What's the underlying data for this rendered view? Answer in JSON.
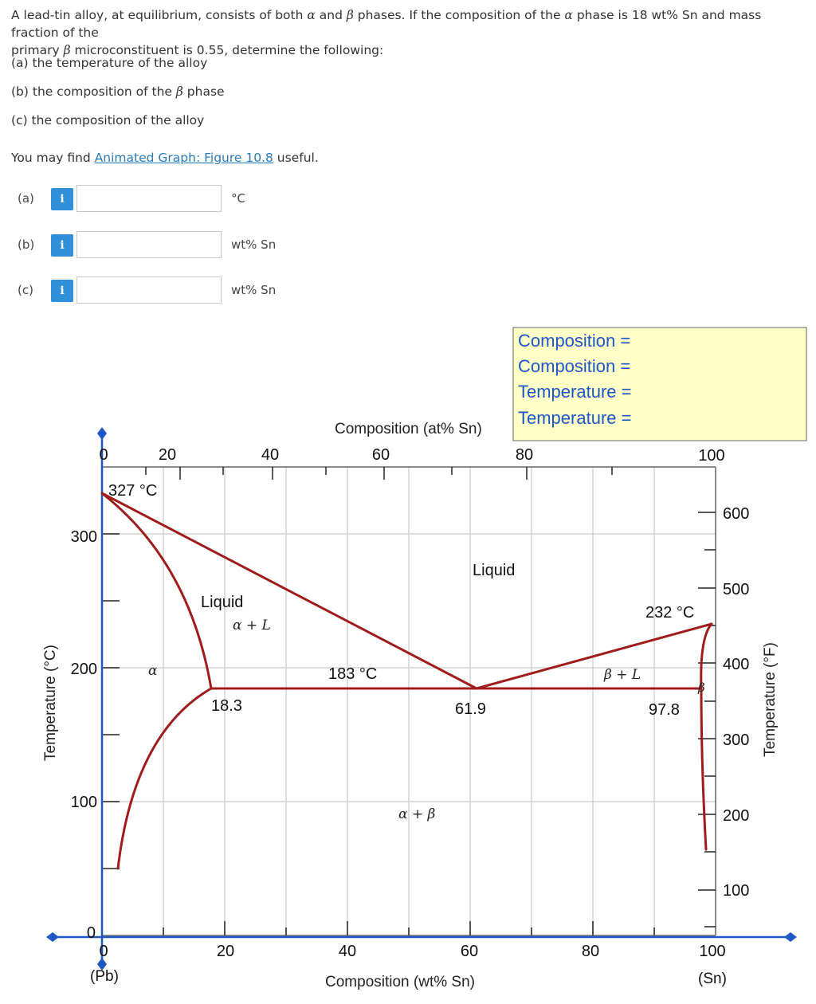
{
  "question": {
    "line1_a": "A lead-tin alloy, at equilibrium, consists of both ",
    "alpha": "α",
    "line1_b": " and ",
    "beta": "β",
    "line1_c": " phases.  If the composition of the ",
    "line1_d": " phase is 18 wt% Sn and mass fraction of the",
    "line2_a": "primary ",
    "line2_b": " microconstituent is 0.55, determine the following:",
    "part_a": "(a) the temperature of the alloy",
    "part_b_a": "(b) the composition of the ",
    "part_b_b": " phase",
    "part_c": "(c) the composition of the alloy",
    "hint_a": "You may find ",
    "hint_link": "Animated Graph: Figure 10.8",
    "hint_b": " useful."
  },
  "answers": [
    {
      "label": "(a)",
      "info": "i",
      "value": "",
      "unit": "°C"
    },
    {
      "label": "(b)",
      "info": "i",
      "value": "",
      "unit": "wt% Sn"
    },
    {
      "label": "(c)",
      "info": "i",
      "value": "",
      "unit": "wt% Sn"
    }
  ],
  "readout": {
    "lines": [
      "Composition =",
      "Composition =",
      "Temperature =",
      "Temperature ="
    ]
  },
  "diagram": {
    "top_axis_title": "Composition (at% Sn)",
    "top_ticks": [
      "0",
      "20",
      "40",
      "60",
      "80",
      "100"
    ],
    "bottom_axis_title": "Composition (wt% Sn)",
    "bottom_ticks": [
      "0",
      "20",
      "40",
      "60",
      "80",
      "100"
    ],
    "bottom_end_left": "(Pb)",
    "bottom_end_right": "(Sn)",
    "left_axis_title": "Temperature (°C)",
    "left_ticks": [
      "0",
      "100",
      "200",
      "300"
    ],
    "right_axis_title": "Temperature (°F)",
    "right_ticks": [
      "100",
      "200",
      "300",
      "400",
      "500",
      "600"
    ],
    "labels": {
      "pb_melt": "327 °C",
      "sn_melt": "232 °C",
      "eutectic_temp": "183 °C",
      "alpha_max": "18.3",
      "eutectic_comp": "61.9",
      "beta_max": "97.8",
      "liquid_left": "Liquid",
      "liquid_right": "Liquid",
      "alpha_l": "α + L",
      "beta_l": "β + L",
      "alpha": "α",
      "beta": "β",
      "alpha_beta": "α + β"
    },
    "line_color": "#a01c1c",
    "grid_color": "#d4d4d4",
    "handle_color": "#1e56c8"
  }
}
